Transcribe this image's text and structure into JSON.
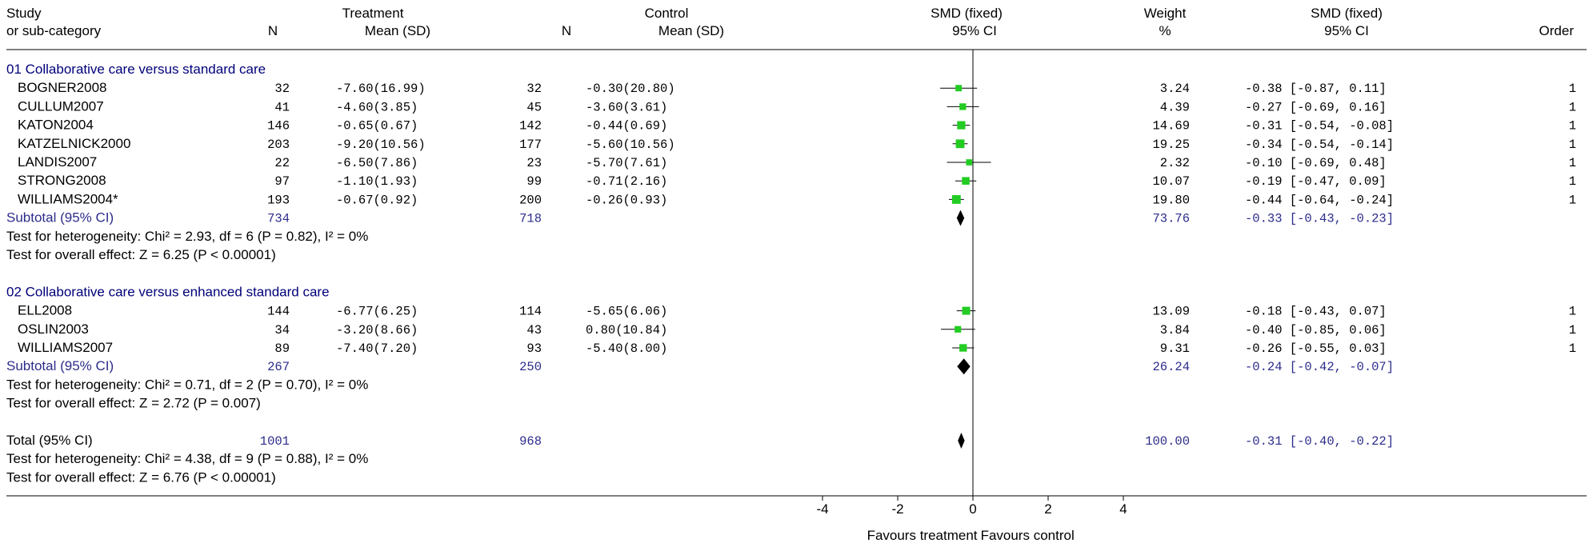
{
  "header": {
    "study_l1": "Study",
    "study_l2": "or sub-category",
    "treat_l1": "Treatment",
    "treat_n": "N",
    "treat_mean": "Mean (SD)",
    "ctrl_l1": "Control",
    "ctrl_n": "N",
    "ctrl_mean": "Mean (SD)",
    "smd_l1": "SMD (fixed)",
    "smd_l2": "95% CI",
    "weight_l1": "Weight",
    "weight_l2": "%",
    "smd2_l1": "SMD (fixed)",
    "smd2_l2": "95% CI",
    "order": "Order"
  },
  "chart_data": {
    "type": "forest",
    "x_ticks": [
      -4,
      -2,
      0,
      2,
      4
    ],
    "xlim": [
      -4,
      4
    ],
    "favours_left": "Favours treatment",
    "favours_right": "Favours control",
    "colors": {
      "box": "#22cc22",
      "heading": "#00007a",
      "subtotal": "#2c2c8c"
    },
    "groups": [
      {
        "title": "01 Collaborative care versus standard care",
        "studies": [
          {
            "name": "BOGNER2008",
            "tn": "32",
            "tmean": "-7.60(16.99)",
            "cn": "32",
            "cmean": "-0.30(20.80)",
            "smd": -0.38,
            "lo": -0.87,
            "hi": 0.11,
            "weight": 3.24,
            "weight_text": "3.24",
            "ci_text": "-0.38 [-0.87, 0.11]",
            "order": "1"
          },
          {
            "name": "CULLUM2007",
            "tn": "41",
            "tmean": "-4.60(3.85)",
            "cn": "45",
            "cmean": "-3.60(3.61)",
            "smd": -0.27,
            "lo": -0.69,
            "hi": 0.16,
            "weight": 4.39,
            "weight_text": "4.39",
            "ci_text": "-0.27 [-0.69, 0.16]",
            "order": "1"
          },
          {
            "name": "KATON2004",
            "tn": "146",
            "tmean": "-0.65(0.67)",
            "cn": "142",
            "cmean": "-0.44(0.69)",
            "smd": -0.31,
            "lo": -0.54,
            "hi": -0.08,
            "weight": 14.69,
            "weight_text": "14.69",
            "ci_text": "-0.31 [-0.54, -0.08]",
            "order": "1"
          },
          {
            "name": "KATZELNICK2000",
            "tn": "203",
            "tmean": "-9.20(10.56)",
            "cn": "177",
            "cmean": "-5.60(10.56)",
            "smd": -0.34,
            "lo": -0.54,
            "hi": -0.14,
            "weight": 19.25,
            "weight_text": "19.25",
            "ci_text": "-0.34 [-0.54, -0.14]",
            "order": "1"
          },
          {
            "name": "LANDIS2007",
            "tn": "22",
            "tmean": "-6.50(7.86)",
            "cn": "23",
            "cmean": "-5.70(7.61)",
            "smd": -0.1,
            "lo": -0.69,
            "hi": 0.48,
            "weight": 2.32,
            "weight_text": "2.32",
            "ci_text": "-0.10 [-0.69, 0.48]",
            "order": "1"
          },
          {
            "name": "STRONG2008",
            "tn": "97",
            "tmean": "-1.10(1.93)",
            "cn": "99",
            "cmean": "-0.71(2.16)",
            "smd": -0.19,
            "lo": -0.47,
            "hi": 0.09,
            "weight": 10.07,
            "weight_text": "10.07",
            "ci_text": "-0.19 [-0.47, 0.09]",
            "order": "1"
          },
          {
            "name": "WILLIAMS2004*",
            "tn": "193",
            "tmean": "-0.67(0.92)",
            "cn": "200",
            "cmean": "-0.26(0.93)",
            "smd": -0.44,
            "lo": -0.64,
            "hi": -0.24,
            "weight": 19.8,
            "weight_text": "19.80",
            "ci_text": "-0.44 [-0.64, -0.24]",
            "order": "1"
          }
        ],
        "subtotal": {
          "label": "Subtotal (95% CI)",
          "tn": "734",
          "cn": "718",
          "smd": -0.33,
          "lo": -0.43,
          "hi": -0.23,
          "weight_text": "73.76",
          "ci_text": "-0.33 [-0.43, -0.23]"
        },
        "heterogeneity": "Test for heterogeneity: Chi² = 2.93, df = 6 (P = 0.82), I² = 0%",
        "overall": "Test for overall effect: Z = 6.25 (P < 0.00001)"
      },
      {
        "title": "02 Collaborative care versus enhanced standard care",
        "studies": [
          {
            "name": "ELL2008",
            "tn": "144",
            "tmean": "-6.77(6.25)",
            "cn": "114",
            "cmean": "-5.65(6.06)",
            "smd": -0.18,
            "lo": -0.43,
            "hi": 0.07,
            "weight": 13.09,
            "weight_text": "13.09",
            "ci_text": "-0.18 [-0.43, 0.07]",
            "order": "1"
          },
          {
            "name": "OSLIN2003",
            "tn": "34",
            "tmean": "-3.20(8.66)",
            "cn": "43",
            "cmean": "0.80(10.84)",
            "smd": -0.4,
            "lo": -0.85,
            "hi": 0.06,
            "weight": 3.84,
            "weight_text": "3.84",
            "ci_text": "-0.40 [-0.85, 0.06]",
            "order": "1"
          },
          {
            "name": "WILLIAMS2007",
            "tn": "89",
            "tmean": "-7.40(7.20)",
            "cn": "93",
            "cmean": "-5.40(8.00)",
            "smd": -0.26,
            "lo": -0.55,
            "hi": 0.03,
            "weight": 9.31,
            "weight_text": "9.31",
            "ci_text": "-0.26 [-0.55, 0.03]",
            "order": "1"
          }
        ],
        "subtotal": {
          "label": "Subtotal (95% CI)",
          "tn": "267",
          "cn": "250",
          "smd": -0.24,
          "lo": -0.42,
          "hi": -0.07,
          "weight_text": "26.24",
          "ci_text": "-0.24 [-0.42, -0.07]"
        },
        "heterogeneity": "Test for heterogeneity: Chi² = 0.71, df = 2 (P = 0.70), I² = 0%",
        "overall": "Test for overall effect: Z = 2.72 (P = 0.007)"
      }
    ],
    "total": {
      "label": "Total (95% CI)",
      "tn": "1001",
      "cn": "968",
      "smd": -0.31,
      "lo": -0.4,
      "hi": -0.22,
      "weight_text": "100.00",
      "ci_text": "-0.31 [-0.40, -0.22]",
      "heterogeneity": "Test for heterogeneity: Chi² = 4.38, df = 9 (P = 0.88), I² = 0%",
      "overall": "Test for overall effect: Z = 6.76 (P < 0.00001)"
    }
  }
}
